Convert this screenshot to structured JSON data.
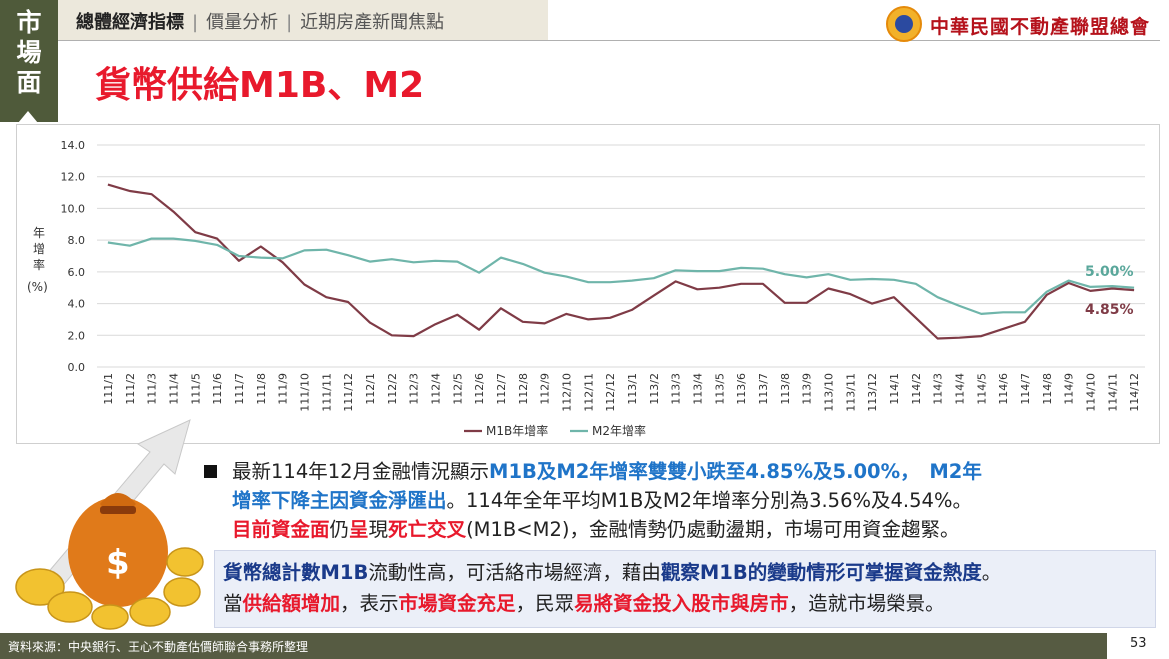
{
  "side_tab": [
    "市",
    "場",
    "面"
  ],
  "nav": {
    "items": [
      "總體經濟指標",
      "價量分析",
      "近期房產新聞焦點"
    ],
    "active_index": 0
  },
  "logo_text": "中華民國不動產聯盟總會",
  "title": "貨幣供給M1B、M2",
  "chart_data": {
    "type": "line",
    "x": [
      "111/1",
      "111/2",
      "111/3",
      "111/4",
      "111/5",
      "111/6",
      "111/7",
      "111/8",
      "111/9",
      "111/10",
      "111/11",
      "111/12",
      "112/1",
      "112/2",
      "112/3",
      "112/4",
      "112/5",
      "112/6",
      "112/7",
      "112/8",
      "112/9",
      "112/10",
      "112/11",
      "112/12",
      "113/1",
      "113/2",
      "113/3",
      "113/4",
      "113/5",
      "113/6",
      "113/7",
      "113/8",
      "113/9",
      "113/10",
      "113/11",
      "113/12",
      "114/1",
      "114/2",
      "114/3",
      "114/4",
      "114/5",
      "114/6",
      "114/7",
      "114/8",
      "114/9",
      "114/10",
      "114/11",
      "114/12"
    ],
    "series": [
      {
        "name": "M1B年增率",
        "color": "#7f3b46",
        "values": [
          11.5,
          11.1,
          10.9,
          9.8,
          8.5,
          8.1,
          6.7,
          7.6,
          6.6,
          5.2,
          4.4,
          4.1,
          2.8,
          2.0,
          1.95,
          2.7,
          3.3,
          2.35,
          3.7,
          2.85,
          2.75,
          3.35,
          3.0,
          3.1,
          3.6,
          4.5,
          5.4,
          4.9,
          5.0,
          5.25,
          5.25,
          4.05,
          4.05,
          4.95,
          4.6,
          4.0,
          4.4,
          3.1,
          1.8,
          1.85,
          1.95,
          2.4,
          2.85,
          4.55,
          5.3,
          4.8,
          4.95,
          4.85
        ]
      },
      {
        "name": "M2年增率",
        "color": "#6fb5aa",
        "values": [
          7.85,
          7.65,
          8.1,
          8.1,
          7.95,
          7.7,
          7.0,
          6.9,
          6.85,
          7.35,
          7.4,
          7.05,
          6.65,
          6.8,
          6.6,
          6.7,
          6.65,
          5.95,
          6.9,
          6.5,
          5.95,
          5.7,
          5.35,
          5.35,
          5.45,
          5.6,
          6.1,
          6.05,
          6.05,
          6.25,
          6.2,
          5.85,
          5.65,
          5.85,
          5.5,
          5.55,
          5.5,
          5.25,
          4.4,
          3.85,
          3.35,
          3.45,
          3.45,
          4.75,
          5.45,
          5.05,
          5.1,
          5.0
        ]
      }
    ],
    "ylabel": "年增率(%)",
    "ylim": [
      0,
      14
    ],
    "yticks": [
      "0.0",
      "2.0",
      "4.0",
      "6.0",
      "8.0",
      "10.0",
      "12.0",
      "14.0"
    ],
    "grid": true,
    "legend": "bottom",
    "end_labels": {
      "m2": "5.00%",
      "m1b": "4.85%"
    }
  },
  "paragraph": {
    "line1_a": "最新114年12月金融情況顯示",
    "line1_b": "M1B及M2年增率雙雙小跌至4.85%及5.00%，　M2年",
    "line2_a": "增率下降主因資金淨匯出",
    "line2_b": "。114年全年平均M1B及M2年增率分別為3.56%及4.54%。",
    "line3_a": "目前資金面",
    "line3_b": "仍",
    "line3_c": "呈",
    "line3_d": "現",
    "line3_e": "死亡交叉",
    "line3_f": "(M1B<M2)，金融情勢仍處動盪期，市場可用資金趨緊。"
  },
  "note": {
    "l1_a": "貨幣總計數M1B",
    "l1_b": "流動性高，可活絡市場經濟，藉由",
    "l1_c": "觀察M1B的變動情形可掌握資金熱度",
    "l1_d": "。",
    "l2_a": "當",
    "l2_b": "供給額增加",
    "l2_c": "，表示",
    "l2_d": "市場資金充足",
    "l2_e": "，民眾",
    "l2_f": "易將資金投入股市與房市",
    "l2_g": "，造就市場榮景。"
  },
  "footer": {
    "source": "資料來源：中央銀行、王心不動產估價師聯合事務所整理",
    "page": "53"
  }
}
